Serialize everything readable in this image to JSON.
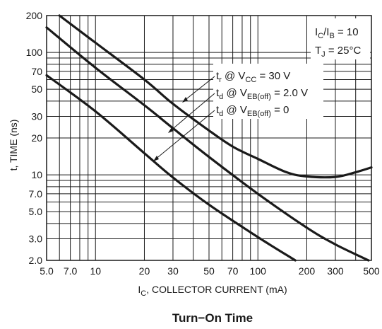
{
  "chart_data": {
    "type": "line",
    "x_scale": "log",
    "y_scale": "log",
    "xlim": [
      5,
      500
    ],
    "ylim": [
      2,
      200
    ],
    "grid": true,
    "legend": "none",
    "xlabel_main": "I",
    "xlabel_sub": "C",
    "xlabel_rest": ", COLLECTOR CURRENT (mA)",
    "ylabel": "t, TIME (ns)",
    "caption": "Turn−On Time",
    "x_ticks": [
      {
        "v": 5,
        "label": "5.0"
      },
      {
        "v": 7,
        "label": "7.0"
      },
      {
        "v": 10,
        "label": "10"
      },
      {
        "v": 20,
        "label": "20"
      },
      {
        "v": 30,
        "label": "30"
      },
      {
        "v": 50,
        "label": "50"
      },
      {
        "v": 70,
        "label": "70"
      },
      {
        "v": 100,
        "label": "100"
      },
      {
        "v": 200,
        "label": "200"
      },
      {
        "v": 300,
        "label": "300"
      },
      {
        "v": 500,
        "label": "500"
      }
    ],
    "y_ticks": [
      {
        "v": 2,
        "label": "2.0"
      },
      {
        "v": 3,
        "label": "3.0"
      },
      {
        "v": 5,
        "label": "5.0"
      },
      {
        "v": 7,
        "label": "7.0"
      },
      {
        "v": 10,
        "label": "10"
      },
      {
        "v": 20,
        "label": "20"
      },
      {
        "v": 30,
        "label": "30"
      },
      {
        "v": 50,
        "label": "50"
      },
      {
        "v": 70,
        "label": "70"
      },
      {
        "v": 100,
        "label": "100"
      },
      {
        "v": 200,
        "label": "200"
      }
    ],
    "conditions": {
      "line1": {
        "main": "I",
        "sub1": "C",
        "mid": "/I",
        "sub2": "B",
        "rest": " = 10"
      },
      "line2": {
        "main": "T",
        "sub1": "J",
        "rest": " = 25°C"
      }
    },
    "series": [
      {
        "name": "tr @ VCC = 30 V",
        "label": {
          "main": "t",
          "sub1": "r",
          "mid": " @ V",
          "sub2": "CC",
          "rest": " = 30 V"
        },
        "points": [
          [
            6,
            200
          ],
          [
            10,
            120
          ],
          [
            20,
            60
          ],
          [
            30,
            38
          ],
          [
            50,
            23
          ],
          [
            70,
            17
          ],
          [
            100,
            13.5
          ],
          [
            150,
            10.5
          ],
          [
            200,
            9.7
          ],
          [
            300,
            9.6
          ],
          [
            400,
            10.5
          ],
          [
            500,
            11.5
          ]
        ]
      },
      {
        "name": "td @ VEB(off) = 2.0 V",
        "label": {
          "main": "t",
          "sub1": "d",
          "mid": " @ V",
          "sub2": "EB(off)",
          "rest": " = 2.0 V"
        },
        "points": [
          [
            5,
            160
          ],
          [
            10,
            75
          ],
          [
            20,
            37
          ],
          [
            30,
            24
          ],
          [
            50,
            14
          ],
          [
            100,
            7
          ],
          [
            200,
            3.7
          ],
          [
            300,
            2.7
          ],
          [
            480,
            2.0
          ]
        ]
      },
      {
        "name": "td @ VEB(off) = 0",
        "label": {
          "main": "t",
          "sub1": "d",
          "mid": " @ V",
          "sub2": "EB(off)",
          "rest": " = 0"
        },
        "points": [
          [
            5,
            65
          ],
          [
            10,
            33
          ],
          [
            20,
            15
          ],
          [
            30,
            9.5
          ],
          [
            50,
            5.7
          ],
          [
            100,
            3.1
          ],
          [
            170,
            2.0
          ]
        ]
      }
    ]
  }
}
